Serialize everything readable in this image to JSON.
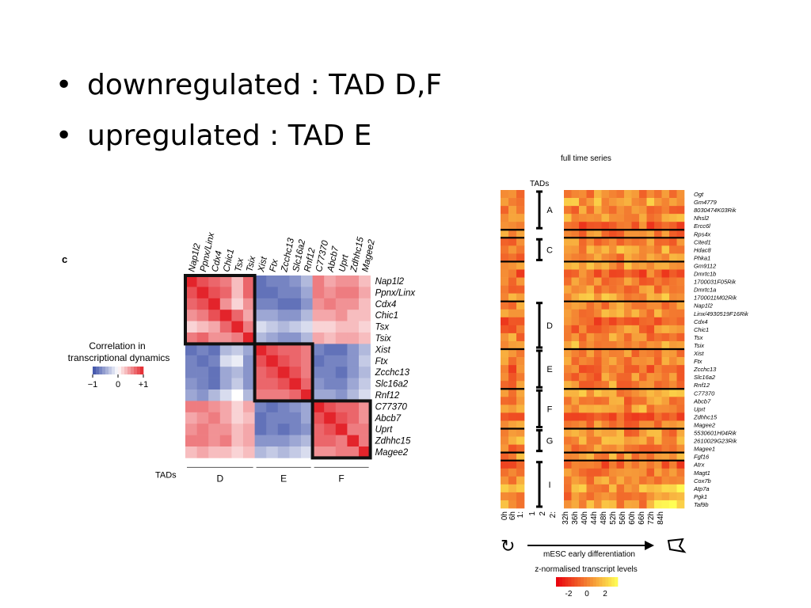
{
  "slide": {
    "bullets": [
      "downregulated : TAD D,F",
      "upregulated : TAD E"
    ],
    "bullet_glyph": "•"
  },
  "chart_data": [
    {
      "type": "heatmap",
      "panel_label": "c",
      "legend": {
        "title_line1": "Correlation in",
        "title_line2": "transcriptional dynamics",
        "min_label": "−1",
        "mid_label": "0",
        "max_label": "+1",
        "low_color": "#3b4fa8",
        "mid_color": "#ffffff",
        "high_color": "#e3242b"
      },
      "genes": [
        "Nap1l2",
        "Ppnx/Linx",
        "Cdx4",
        "Chic1",
        "Tsx",
        "Tsix",
        "Xist",
        "Ftx",
        "Zcchc13",
        "Slc16a2",
        "Rnf12",
        "C77370",
        "Abcb7",
        "Uprt",
        "Zdhhc15",
        "Magee2"
      ],
      "tads_label": "TADs",
      "tads": [
        {
          "name": "D",
          "start": 0,
          "end": 5
        },
        {
          "name": "E",
          "start": 6,
          "end": 10
        },
        {
          "name": "F",
          "start": 11,
          "end": 15
        }
      ],
      "values": [
        [
          1.0,
          0.8,
          0.7,
          0.6,
          0.3,
          0.7,
          -0.8,
          -0.7,
          -0.7,
          -0.6,
          -0.4,
          0.6,
          0.4,
          0.5,
          0.5,
          0.3
        ],
        [
          0.8,
          1.0,
          0.8,
          0.7,
          0.3,
          0.7,
          -0.8,
          -0.8,
          -0.7,
          -0.7,
          -0.5,
          0.6,
          0.5,
          0.6,
          0.6,
          0.4
        ],
        [
          0.7,
          0.8,
          1.0,
          0.5,
          0.2,
          0.5,
          -0.7,
          -0.7,
          -0.8,
          -0.8,
          -0.6,
          0.5,
          0.6,
          0.5,
          0.5,
          0.3
        ],
        [
          0.5,
          0.6,
          0.8,
          1.0,
          0.7,
          0.4,
          -0.5,
          -0.5,
          -0.6,
          -0.6,
          -0.4,
          0.4,
          0.4,
          0.5,
          0.3,
          0.3
        ],
        [
          0.2,
          0.3,
          0.4,
          0.7,
          1.0,
          0.6,
          -0.2,
          -0.3,
          -0.4,
          -0.3,
          -0.2,
          0.2,
          0.2,
          0.3,
          0.3,
          0.2
        ],
        [
          0.6,
          0.7,
          0.5,
          0.5,
          0.6,
          1.0,
          -0.4,
          -0.5,
          -0.6,
          -0.6,
          -0.4,
          0.4,
          0.3,
          0.4,
          0.4,
          0.3
        ],
        [
          -0.8,
          -0.7,
          -0.8,
          -0.4,
          -0.3,
          -0.5,
          1.0,
          0.8,
          0.7,
          0.7,
          0.6,
          -0.7,
          -0.8,
          -0.8,
          -0.6,
          -0.4
        ],
        [
          -0.7,
          -0.8,
          -0.7,
          -0.2,
          -0.1,
          -0.6,
          0.8,
          1.0,
          0.8,
          0.7,
          0.6,
          -0.8,
          -0.7,
          -0.7,
          -0.6,
          -0.3
        ],
        [
          -0.7,
          -0.7,
          -0.8,
          -0.5,
          -0.4,
          -0.6,
          0.7,
          0.8,
          1.0,
          0.8,
          0.6,
          -0.7,
          -0.7,
          -0.8,
          -0.6,
          -0.4
        ],
        [
          -0.6,
          -0.7,
          -0.8,
          -0.5,
          -0.3,
          -0.6,
          0.7,
          0.7,
          0.8,
          1.0,
          0.7,
          -0.6,
          -0.7,
          -0.7,
          -0.5,
          -0.3
        ],
        [
          -0.5,
          -0.6,
          -0.4,
          -0.2,
          0.0,
          -0.4,
          0.6,
          0.6,
          0.6,
          0.7,
          1.0,
          -0.5,
          -0.5,
          -0.6,
          -0.4,
          -0.2
        ],
        [
          0.6,
          0.6,
          0.5,
          0.4,
          0.2,
          0.4,
          -0.7,
          -0.8,
          -0.7,
          -0.6,
          -0.5,
          1.0,
          0.8,
          0.7,
          0.7,
          0.5
        ],
        [
          0.4,
          0.5,
          0.6,
          0.4,
          0.2,
          0.3,
          -0.8,
          -0.7,
          -0.7,
          -0.7,
          -0.5,
          0.8,
          1.0,
          0.8,
          0.7,
          0.5
        ],
        [
          0.5,
          0.6,
          0.5,
          0.5,
          0.3,
          0.4,
          -0.8,
          -0.7,
          -0.8,
          -0.7,
          -0.6,
          0.7,
          0.8,
          1.0,
          0.6,
          0.6
        ],
        [
          0.6,
          0.6,
          0.5,
          0.6,
          0.3,
          0.4,
          -0.6,
          -0.6,
          -0.6,
          -0.5,
          -0.4,
          0.7,
          0.7,
          0.6,
          1.0,
          0.6
        ],
        [
          0.3,
          0.4,
          0.3,
          0.3,
          0.2,
          0.3,
          -0.4,
          -0.3,
          -0.4,
          -0.3,
          -0.2,
          0.5,
          0.5,
          0.6,
          0.6,
          1.0
        ]
      ]
    },
    {
      "type": "heatmap",
      "title": "full time series",
      "tads_label": "TADs",
      "genes": [
        "Ogt",
        "Gm4779",
        "8030474K03Rik",
        "Nhsl2",
        "Ercc6l",
        "Rps4x",
        "Cited1",
        "Hdac8",
        "Phka1",
        "Gm9112",
        "Dmrtc1b",
        "1700031F05Rik",
        "Dmrtc1a",
        "1700011M02Rik",
        "Nap1l2",
        "Linx/4930519F16Rik",
        "Cdx4",
        "Chic1",
        "Tsx",
        "Tsix",
        "Xist",
        "Ftx",
        "Zcchc13",
        "Slc16a2",
        "Rnf12",
        "C77370",
        "Abcb7",
        "Uprt",
        "Zdhhc15",
        "Magee2",
        "5530601H04Rik",
        "2610029G23Rik",
        "Magee1",
        "Fgf16",
        "Atrx",
        "Magt1",
        "Cox7b",
        "Atp7a",
        "Pgk1",
        "Taf9b"
      ],
      "tads": [
        {
          "name": "A",
          "start": 0,
          "end": 4
        },
        {
          "name": "C",
          "start": 6,
          "end": 8
        },
        {
          "name": "D",
          "start": 14,
          "end": 19
        },
        {
          "name": "E",
          "start": 20,
          "end": 24
        },
        {
          "name": "F",
          "start": 25,
          "end": 29
        },
        {
          "name": "G",
          "start": 30,
          "end": 32
        },
        {
          "name": "I",
          "start": 34,
          "end": 39
        }
      ],
      "row_separators_after": [
        4,
        5,
        8,
        13,
        19,
        24,
        29,
        32,
        33
      ],
      "left_time_labels": [
        "0h",
        "6h",
        "1:"
      ],
      "mid_labels": [
        "1",
        "2",
        "2:"
      ],
      "right_time_labels": [
        "32h",
        "36h",
        "40h",
        "44h",
        "48h",
        "52h",
        "56h",
        "60h",
        "66h",
        "72h",
        "84h"
      ],
      "axis_label": "mESC early differentiation",
      "colorbar_title": "z-normalised transcript levels",
      "colorbar_ticks": [
        "-2",
        "0",
        "2"
      ],
      "colorbar_low": "#e8000d",
      "colorbar_high": "#ffff55",
      "values_seed_note": "",
      "values": null
    }
  ]
}
